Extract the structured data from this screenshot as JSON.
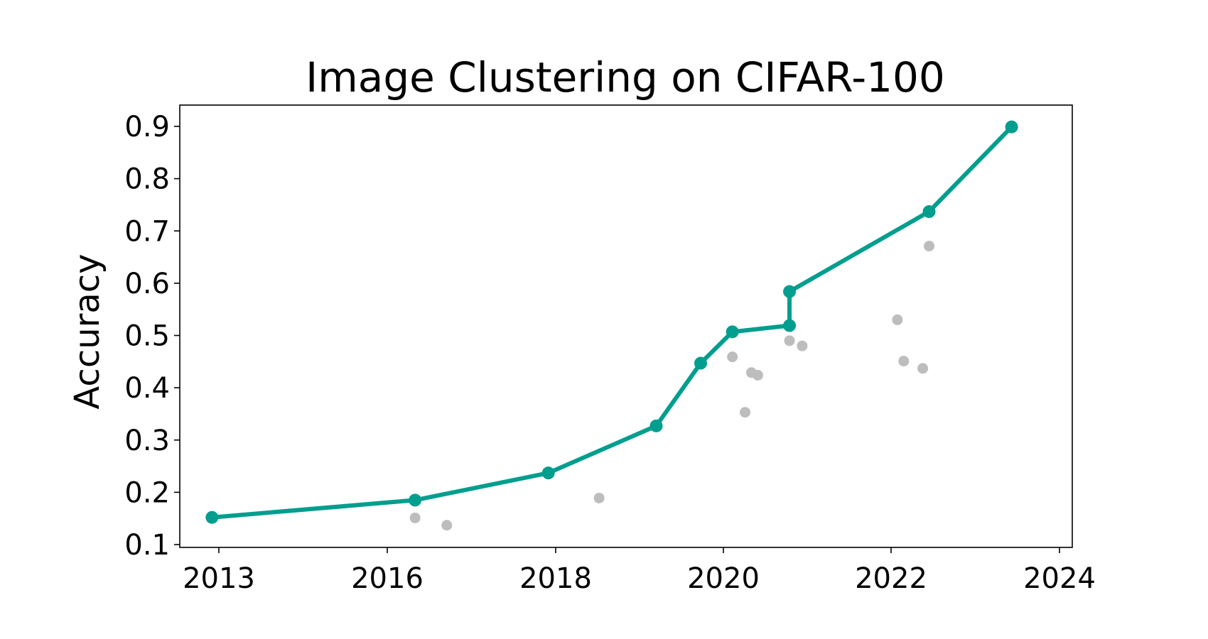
{
  "chart_data": {
    "type": "line",
    "title": "Image Clustering on CIFAR-100",
    "xlabel": "",
    "ylabel": "Accuracy",
    "x_ticks": [
      "2013",
      "2016",
      "2018",
      "2020",
      "2022",
      "2024"
    ],
    "y_ticks": [
      "0.1",
      "0.2",
      "0.3",
      "0.4",
      "0.5",
      "0.6",
      "0.7",
      "0.8",
      "0.9"
    ],
    "ylim": [
      0.1,
      0.945
    ],
    "grid": false,
    "colors": {
      "sota": "#009e8e",
      "other": "#bdbdbd"
    },
    "series": [
      {
        "points": [
          {
            "x": "2013-02",
            "y": 0.152
          },
          {
            "x": "2015-10",
            "y": 0.185
          },
          {
            "x": "2017-07",
            "y": 0.237
          },
          {
            "x": "2018-12",
            "y": 0.327
          },
          {
            "x": "2019-07",
            "y": 0.447
          },
          {
            "x": "2019-12",
            "y": 0.507
          },
          {
            "x": "2020-09",
            "y": 0.519
          },
          {
            "x": "2020-09",
            "y": 0.584
          },
          {
            "x": "2022-07",
            "y": 0.737
          },
          {
            "x": "2023-08",
            "y": 0.899
          }
        ]
      },
      {
        "points": [
          {
            "x": "2015-10",
            "y": 0.151
          },
          {
            "x": "2016-03",
            "y": 0.137
          },
          {
            "x": "2018-03",
            "y": 0.189
          },
          {
            "x": "2019-12",
            "y": 0.459
          },
          {
            "x": "2020-02",
            "y": 0.353
          },
          {
            "x": "2020-03",
            "y": 0.429
          },
          {
            "x": "2020-04",
            "y": 0.424
          },
          {
            "x": "2020-09",
            "y": 0.49
          },
          {
            "x": "2020-11",
            "y": 0.48
          },
          {
            "x": "2022-02",
            "y": 0.53
          },
          {
            "x": "2022-03",
            "y": 0.451
          },
          {
            "x": "2022-06",
            "y": 0.437
          },
          {
            "x": "2022-07",
            "y": 0.671
          }
        ]
      }
    ]
  }
}
